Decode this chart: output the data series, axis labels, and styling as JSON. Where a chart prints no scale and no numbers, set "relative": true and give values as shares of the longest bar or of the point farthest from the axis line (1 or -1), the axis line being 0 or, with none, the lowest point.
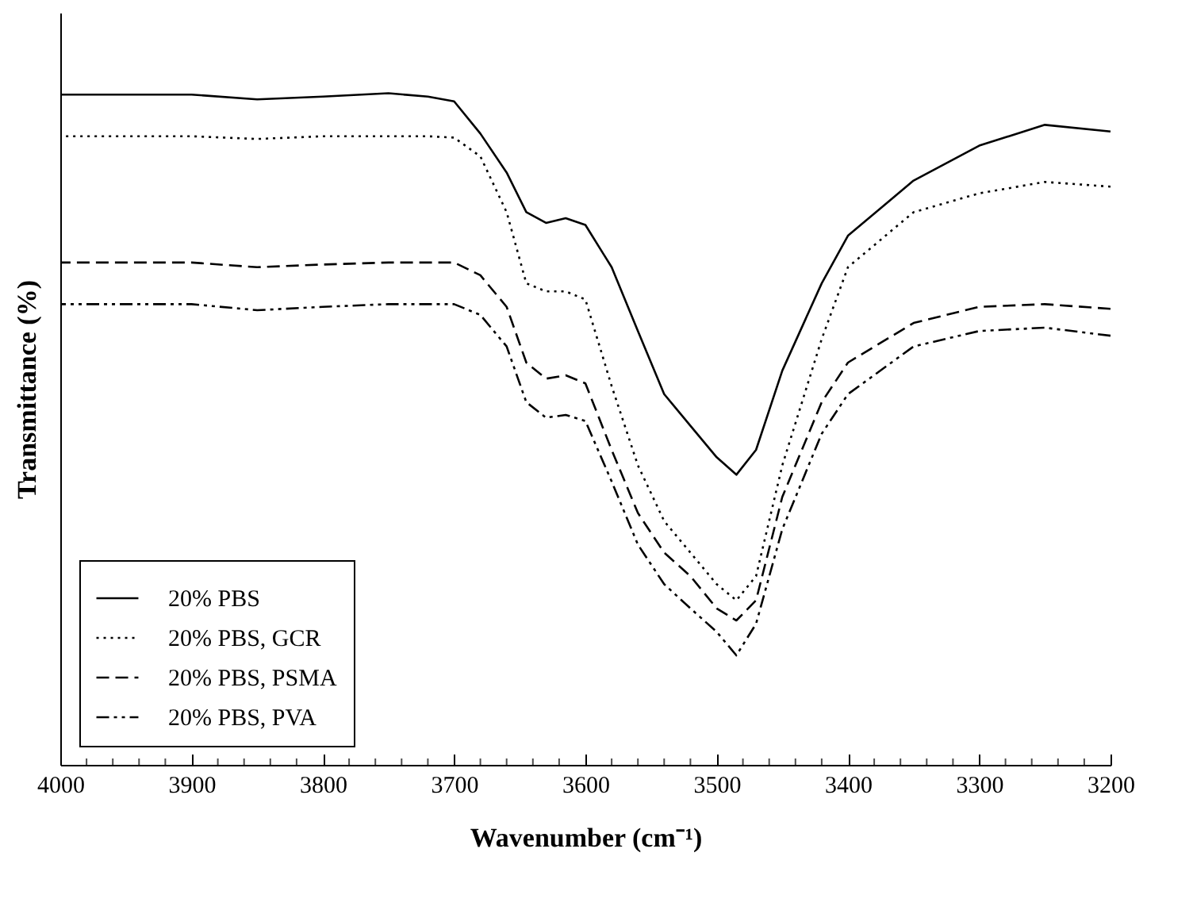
{
  "chart_data": {
    "type": "line",
    "relative": true,
    "xlabel": "Wavenumber (cm⁻¹)",
    "ylabel": "Transmittance (%)",
    "x": [
      4000,
      3900,
      3850,
      3800,
      3750,
      3720,
      3700,
      3680,
      3660,
      3645,
      3630,
      3615,
      3600,
      3580,
      3560,
      3540,
      3520,
      3500,
      3485,
      3470,
      3450,
      3420,
      3400,
      3350,
      3300,
      3250,
      3200
    ],
    "xlim": [
      4000,
      3200
    ],
    "xticks": [
      4000,
      3900,
      3800,
      3700,
      3600,
      3500,
      3400,
      3300,
      3200
    ],
    "grid": false,
    "legend": "bottom left",
    "marker": "none",
    "series": [
      {
        "name": "20% PBS",
        "color": "#000000",
        "line_style": "solid",
        "values": [
          0.998,
          0.998,
          0.991,
          0.995,
          1.0,
          0.995,
          0.988,
          0.94,
          0.882,
          0.823,
          0.807,
          0.814,
          0.804,
          0.741,
          0.646,
          0.552,
          0.505,
          0.458,
          0.432,
          0.469,
          0.587,
          0.717,
          0.788,
          0.87,
          0.922,
          0.953,
          0.943
        ]
      },
      {
        "name": "20% PBS, GCR",
        "color": "#000000",
        "line_style": "dotted",
        "values": [
          0.936,
          0.936,
          0.932,
          0.936,
          0.936,
          0.936,
          0.934,
          0.906,
          0.823,
          0.717,
          0.705,
          0.705,
          0.693,
          0.564,
          0.446,
          0.363,
          0.316,
          0.269,
          0.245,
          0.281,
          0.446,
          0.634,
          0.741,
          0.823,
          0.851,
          0.868,
          0.861
        ]
      },
      {
        "name": "20% PBS, PSMA",
        "color": "#000000",
        "line_style": "dashed",
        "values": [
          0.748,
          0.748,
          0.741,
          0.745,
          0.748,
          0.748,
          0.748,
          0.729,
          0.682,
          0.599,
          0.575,
          0.58,
          0.568,
          0.469,
          0.375,
          0.316,
          0.281,
          0.233,
          0.215,
          0.245,
          0.399,
          0.54,
          0.599,
          0.658,
          0.682,
          0.686,
          0.679
        ]
      },
      {
        "name": "20% PBS, PVA",
        "color": "#000000",
        "line_style": "dashdot",
        "values": [
          0.686,
          0.686,
          0.677,
          0.682,
          0.686,
          0.686,
          0.686,
          0.67,
          0.623,
          0.54,
          0.517,
          0.521,
          0.512,
          0.422,
          0.328,
          0.269,
          0.233,
          0.198,
          0.163,
          0.21,
          0.351,
          0.493,
          0.552,
          0.623,
          0.646,
          0.651,
          0.639
        ]
      }
    ]
  }
}
